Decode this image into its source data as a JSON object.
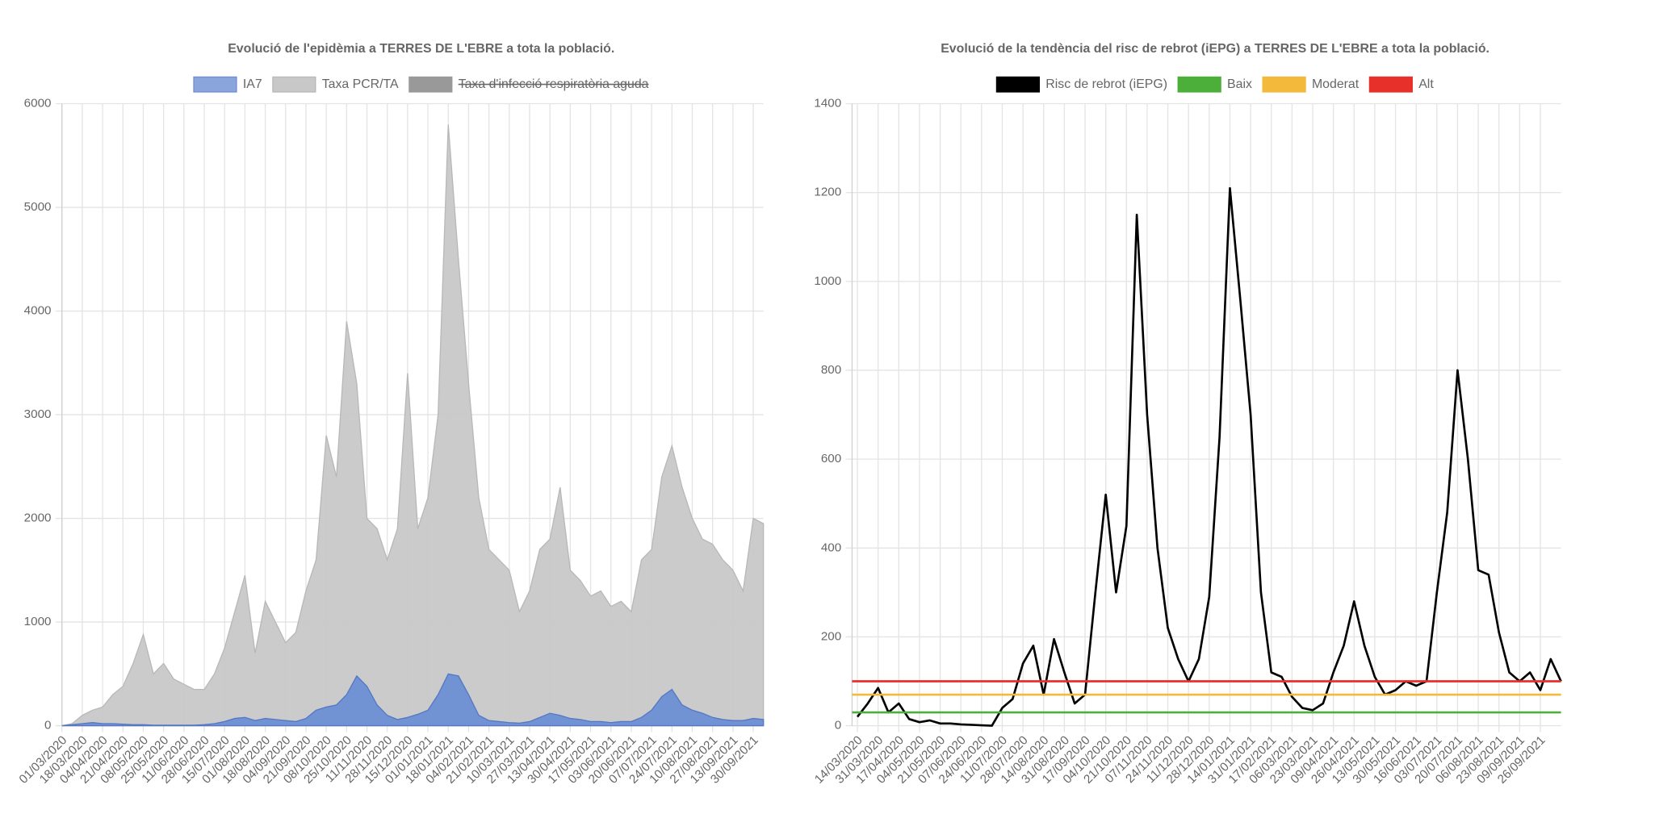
{
  "chart_data": [
    {
      "type": "area",
      "title": "Evolució de l'epidèmia a TERRES DE L'EBRE a tota la població.",
      "categories": [
        "01/03/2020",
        null,
        "18/03/2020",
        null,
        "04/04/2020",
        null,
        "21/04/2020",
        null,
        "08/05/2020",
        null,
        "25/05/2020",
        null,
        "11/06/2020",
        null,
        "28/06/2020",
        null,
        "15/07/2020",
        null,
        "01/08/2020",
        null,
        "18/08/2020",
        null,
        "04/09/2020",
        null,
        "21/09/2020",
        null,
        "08/10/2020",
        null,
        "25/10/2020",
        null,
        "11/11/2020",
        null,
        "28/11/2020",
        null,
        "15/12/2020",
        null,
        "01/01/2021",
        null,
        "18/01/2021",
        null,
        "04/02/2021",
        null,
        "21/02/2021",
        null,
        "10/03/2021",
        null,
        "27/03/2021",
        null,
        "13/04/2021",
        null,
        "30/04/2021",
        null,
        "17/05/2021",
        null,
        "03/06/2021",
        null,
        "20/06/2021",
        null,
        "07/07/2021",
        null,
        "24/07/2021",
        null,
        "10/08/2021",
        null,
        "27/08/2021",
        null,
        "13/09/2021",
        null,
        "30/09/2021",
        null
      ],
      "series": [
        {
          "name": "IA7",
          "color": "#6d8fd3",
          "values": [
            0,
            10,
            20,
            30,
            20,
            20,
            15,
            10,
            10,
            5,
            5,
            5,
            5,
            5,
            10,
            20,
            40,
            70,
            80,
            50,
            70,
            60,
            50,
            40,
            70,
            150,
            180,
            200,
            300,
            480,
            380,
            200,
            100,
            60,
            80,
            110,
            150,
            300,
            500,
            480,
            300,
            100,
            50,
            40,
            30,
            25,
            40,
            80,
            120,
            100,
            70,
            60,
            40,
            40,
            30,
            40,
            40,
            80,
            150,
            280,
            350,
            200,
            150,
            120,
            80,
            60,
            50,
            50,
            70,
            60
          ]
        },
        {
          "name": "Taxa PCR/TA",
          "color": "#c8c8c8",
          "values": [
            0,
            20,
            100,
            150,
            180,
            300,
            380,
            600,
            880,
            500,
            600,
            450,
            400,
            350,
            350,
            500,
            750,
            1100,
            1450,
            700,
            1200,
            1000,
            800,
            900,
            1300,
            1600,
            2800,
            2400,
            3900,
            3300,
            2000,
            1900,
            1600,
            1900,
            3400,
            1900,
            2200,
            3000,
            5800,
            4500,
            3300,
            2200,
            1700,
            1600,
            1500,
            1100,
            1300,
            1700,
            1800,
            2300,
            1500,
            1400,
            1250,
            1300,
            1150,
            1200,
            1100,
            1600,
            1700,
            2400,
            2700,
            2300,
            2000,
            1800,
            1750,
            1600,
            1500,
            1300,
            2000,
            1950
          ]
        },
        {
          "name": "Taxa d'infecció respiratòria aguda",
          "color": "#999999",
          "hidden": true
        }
      ],
      "ylim": [
        0,
        6000
      ],
      "yticks": [
        0,
        1000,
        2000,
        3000,
        4000,
        5000,
        6000
      ],
      "grid": true,
      "legend": "top"
    },
    {
      "type": "line",
      "title": "Evolució de la tendència del risc de rebrot (iEPG) a TERRES DE L'EBRE a tota la població.",
      "categories": [
        "14/03/2020",
        null,
        "31/03/2020",
        null,
        "17/04/2020",
        null,
        "04/05/2020",
        null,
        "21/05/2020",
        null,
        "07/06/2020",
        null,
        "24/06/2020",
        null,
        "11/07/2020",
        null,
        "28/07/2020",
        null,
        "14/08/2020",
        null,
        "31/08/2020",
        null,
        "17/09/2020",
        null,
        "04/10/2020",
        null,
        "21/10/2020",
        null,
        "07/11/2020",
        null,
        "24/11/2020",
        null,
        "11/12/2020",
        null,
        "28/12/2020",
        null,
        "14/01/2021",
        null,
        "31/01/2021",
        null,
        "17/02/2021",
        null,
        "06/03/2021",
        null,
        "23/03/2021",
        null,
        "09/04/2021",
        null,
        "26/04/2021",
        null,
        "13/05/2021",
        null,
        "30/05/2021",
        null,
        "16/06/2021",
        null,
        "03/07/2021",
        null,
        "20/07/2021",
        null,
        "06/08/2021",
        null,
        "23/08/2021",
        null,
        "09/09/2021",
        null,
        "26/09/2021",
        null,
        null
      ],
      "series": [
        {
          "name": "Risc de rebrot (iEPG)",
          "color": "#000000",
          "values": [
            20,
            50,
            85,
            30,
            50,
            15,
            8,
            12,
            5,
            5,
            3,
            2,
            1,
            0,
            40,
            60,
            140,
            180,
            70,
            195,
            120,
            50,
            70,
            300,
            520,
            300,
            450,
            1150,
            700,
            400,
            220,
            150,
            100,
            150,
            290,
            650,
            1210,
            960,
            700,
            300,
            120,
            110,
            65,
            40,
            35,
            50,
            120,
            180,
            280,
            180,
            110,
            70,
            80,
            100,
            90,
            100,
            300,
            480,
            800,
            600,
            350,
            340,
            210,
            120,
            100,
            120,
            80,
            150,
            100
          ]
        },
        {
          "name": "Baix",
          "color": "#4caf3a",
          "value": 30
        },
        {
          "name": "Moderat",
          "color": "#f2b93b",
          "value": 70
        },
        {
          "name": "Alt",
          "color": "#e8302a",
          "value": 100
        }
      ],
      "ylim": [
        0,
        1400
      ],
      "yticks": [
        0,
        200,
        400,
        600,
        800,
        1000,
        1200,
        1400
      ],
      "grid": true,
      "legend": "top"
    }
  ]
}
